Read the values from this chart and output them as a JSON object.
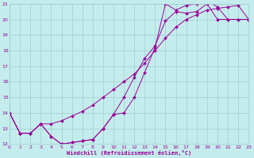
{
  "xlabel": "Windchill (Refroidissement éolien,°C)",
  "xlim": [
    0,
    23
  ],
  "ylim": [
    12,
    21
  ],
  "yticks": [
    12,
    13,
    14,
    15,
    16,
    17,
    18,
    19,
    20,
    21
  ],
  "xticks": [
    0,
    1,
    2,
    3,
    4,
    5,
    6,
    7,
    8,
    9,
    10,
    11,
    12,
    13,
    14,
    15,
    16,
    17,
    18,
    19,
    20,
    21,
    22,
    23
  ],
  "bg_color": "#c5ecec",
  "grid_color": "#9ecece",
  "line_color": "#990099",
  "line1_x": [
    0,
    1,
    2,
    3,
    4,
    5,
    6,
    7,
    8,
    9,
    10,
    11,
    12,
    13,
    14,
    15,
    16,
    17,
    18,
    19,
    20,
    21,
    22,
    23
  ],
  "line1_y": [
    14.0,
    12.7,
    12.7,
    13.3,
    12.5,
    12.0,
    12.1,
    12.2,
    12.3,
    13.0,
    13.9,
    14.0,
    15.0,
    16.6,
    18.2,
    21.0,
    20.6,
    20.9,
    21.0,
    21.2,
    20.8,
    20.0,
    20.0,
    20.0
  ],
  "line2_x": [
    0,
    1,
    2,
    3,
    4,
    5,
    6,
    7,
    8,
    9,
    10,
    11,
    12,
    13,
    14,
    15,
    16,
    17,
    18,
    19,
    20,
    21,
    22,
    23
  ],
  "line2_y": [
    14.0,
    12.7,
    12.7,
    13.3,
    12.5,
    12.0,
    12.1,
    12.2,
    12.3,
    13.0,
    13.9,
    15.0,
    16.3,
    17.5,
    18.3,
    19.9,
    20.5,
    20.4,
    20.5,
    21.0,
    20.0,
    20.0,
    20.0,
    20.0
  ],
  "line3_x": [
    0,
    1,
    2,
    3,
    4,
    5,
    6,
    7,
    8,
    9,
    10,
    11,
    12,
    13,
    14,
    15,
    16,
    17,
    18,
    19,
    20,
    21,
    22,
    23
  ],
  "line3_y": [
    14.0,
    12.7,
    12.7,
    13.3,
    13.3,
    13.5,
    13.8,
    14.1,
    14.5,
    15.0,
    15.5,
    16.0,
    16.5,
    17.2,
    18.0,
    18.8,
    19.5,
    20.0,
    20.3,
    20.6,
    20.7,
    20.8,
    20.9,
    20.0
  ]
}
